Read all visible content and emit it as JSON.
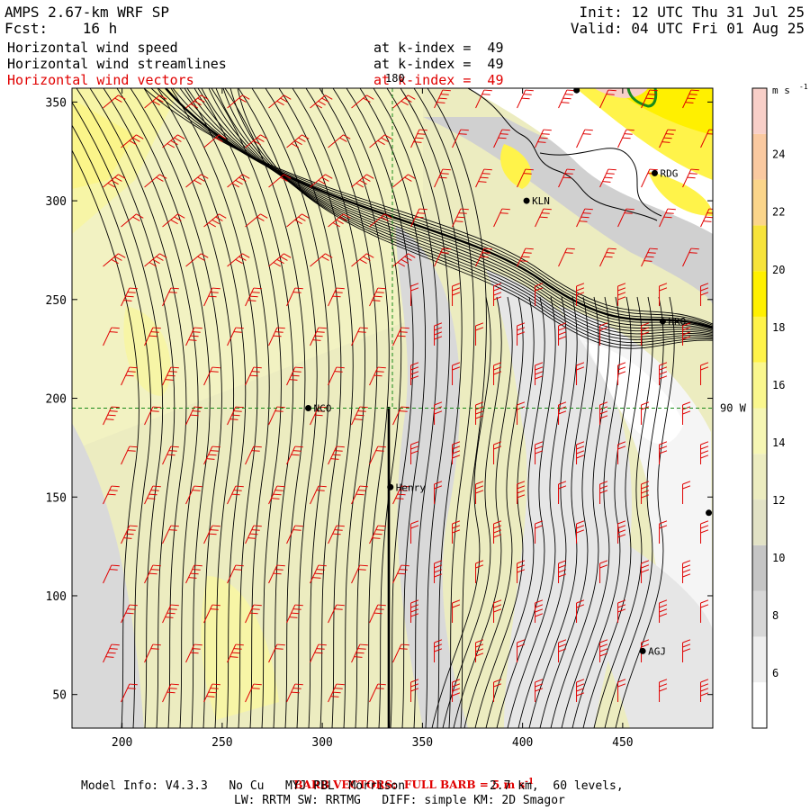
{
  "header": {
    "title": "AMPS 2.67-km WRF SP",
    "forecast": "Fcst:    16 h",
    "init": "Init: 12 UTC Thu 31 Jul 25",
    "valid": "Valid: 04 UTC Fri 01 Aug 25"
  },
  "fields": [
    {
      "name": "Horizontal wind speed",
      "level": "at k-index =  49",
      "color": "#000000"
    },
    {
      "name": "Horizontal wind streamlines",
      "level": "at k-index =  49",
      "color": "#000000"
    },
    {
      "name": "Horizontal wind vectors",
      "level": "at k-index =  49",
      "color": "#e00000"
    }
  ],
  "chart_data": {
    "type": "heatmap",
    "description_fields": [
      "wind speed shading",
      "streamlines",
      "wind barbs"
    ],
    "xlim": [
      175,
      495
    ],
    "ylim": [
      33,
      357
    ],
    "x_ticks": [
      200,
      250,
      300,
      350,
      400,
      450
    ],
    "y_ticks": [
      50,
      100,
      150,
      200,
      250,
      300,
      350
    ],
    "grid_lines": {
      "meridian_x": 335,
      "meridian_label": "180",
      "parallel_y": 195,
      "parallel_label": "90 W"
    },
    "colorbar": {
      "unit": "m s",
      "unit_exp": "-1",
      "levels": [
        6,
        8,
        10,
        12,
        14,
        16,
        18,
        20,
        22,
        24
      ],
      "colors": [
        "#ffffff",
        "#eeeeee",
        "#d7d7d7",
        "#c5c5c5",
        "#e2e2c6",
        "#ececc0",
        "#f6f6b4",
        "#faf78e",
        "#fff34a",
        "#fff000",
        "#f7e33a",
        "#fbd58a",
        "#fac9a0",
        "#f8cfc8"
      ]
    },
    "stations": [
      {
        "label": "RDG",
        "x": 466,
        "y": 314
      },
      {
        "label": "KLN",
        "x": 402,
        "y": 300
      },
      {
        "label": "HRO",
        "x": 470,
        "y": 239
      },
      {
        "label": "NCO",
        "x": 293,
        "y": 195
      },
      {
        "label": "Henry",
        "x": 334,
        "y": 155
      },
      {
        "label": "AGJ",
        "x": 460,
        "y": 72
      },
      {
        "label": "",
        "x": 493,
        "y": 142
      },
      {
        "label": "",
        "x": 427,
        "y": 356
      }
    ]
  },
  "footer": {
    "barb": "BARB VECTORS:  FULL BARB = 5 m s",
    "barb_exp": "-1",
    "line1": "Model Info: V4.3.3   No Cu   MYJ PBL  Morrison            2.7 km,  60 levels,",
    "line2": "LW: RRTM SW: RRTMG   DIFF: simple KM: 2D Smagor"
  }
}
